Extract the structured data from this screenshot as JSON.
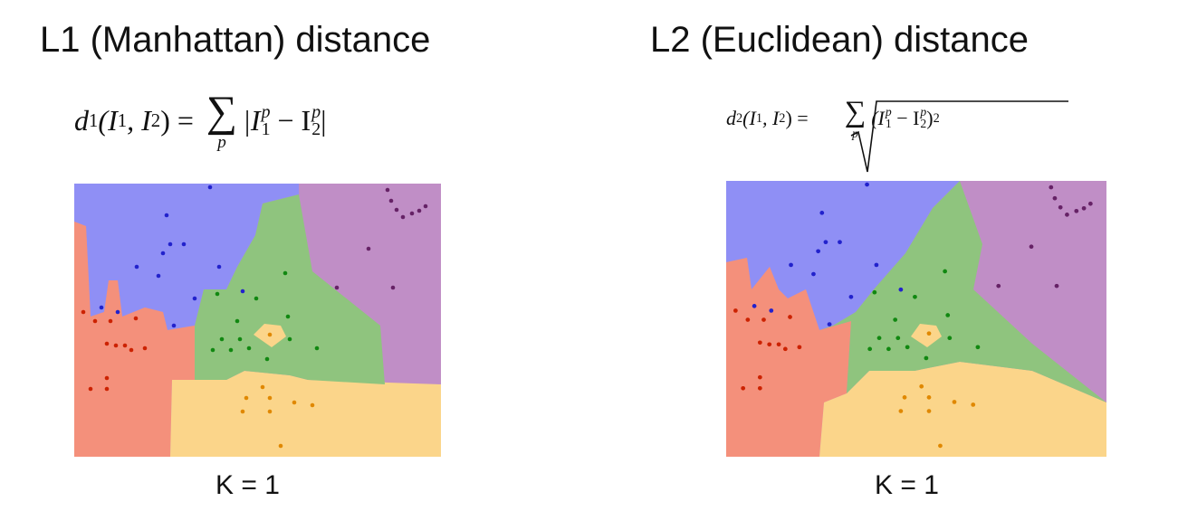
{
  "left": {
    "title": "L1 (Manhattan) distance",
    "formula": [
      "d",
      "1",
      "(I",
      "1",
      ", I",
      "2",
      ") = ",
      "∑",
      "p",
      "|I",
      "p",
      "1",
      " − I",
      "p",
      "2",
      "|"
    ],
    "caption": "K = 1"
  },
  "right": {
    "title": "L2 (Euclidean) distance",
    "formula": [
      "d",
      "2",
      "(I",
      "1",
      ", I",
      "2",
      ") =",
      "∑",
      "p",
      "(I",
      "p",
      "1",
      " − I",
      "p",
      "2",
      ")",
      "2"
    ],
    "caption": "K = 1"
  }
}
